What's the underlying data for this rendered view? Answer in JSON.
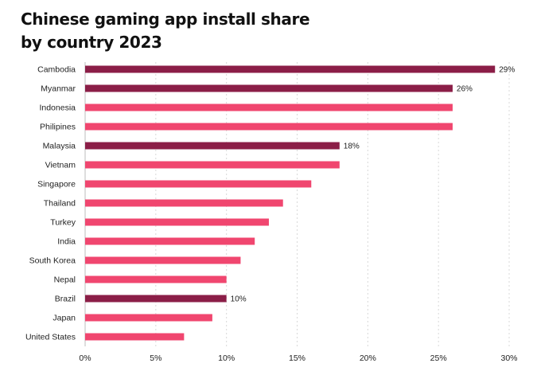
{
  "title_lines": [
    "Chinese gaming app install share",
    "by country 2023"
  ],
  "colors": {
    "highlight": "#8b1e47",
    "default": "#f0466f",
    "grid": "#d8d8d8"
  },
  "chart_data": {
    "type": "bar",
    "orientation": "horizontal",
    "categories": [
      "Cambodia",
      "Myanmar",
      "Indonesia",
      "Philipines",
      "Malaysia",
      "Vietnam",
      "Singapore",
      "Thailand",
      "Turkey",
      "India",
      "South Korea",
      "Nepal",
      "Brazil",
      "Japan",
      "United States"
    ],
    "values": [
      29,
      26,
      26,
      26,
      18,
      18,
      16,
      14,
      13,
      12,
      11,
      10,
      10,
      9,
      7
    ],
    "highlighted": [
      true,
      true,
      false,
      false,
      true,
      false,
      false,
      false,
      false,
      false,
      false,
      false,
      true,
      false,
      false
    ],
    "data_labels": [
      "29%",
      "26%",
      "",
      "",
      "18%",
      "",
      "",
      "",
      "",
      "",
      "",
      "",
      "10%",
      "",
      ""
    ],
    "x_ticks": [
      0,
      5,
      10,
      15,
      20,
      25,
      30
    ],
    "x_tick_labels": [
      "0%",
      "5%",
      "10%",
      "15%",
      "20%",
      "25%",
      "30%"
    ],
    "xlim": [
      0,
      30
    ],
    "grid": true
  }
}
